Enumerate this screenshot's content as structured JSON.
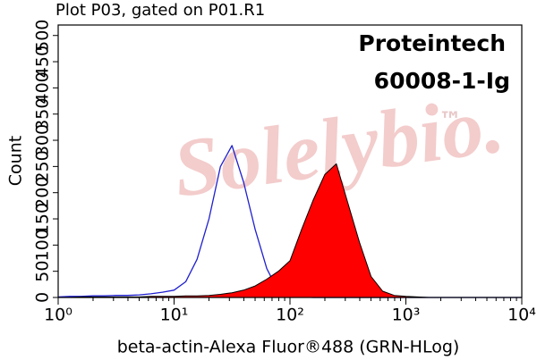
{
  "chart_data": {
    "type": "histogram-overlay",
    "title": "Plot P03, gated on P01.R1",
    "x_label": "beta-actin-Alexa Fluor®488 (GRN-HLog)",
    "y_label": "Count",
    "annotations": [
      "Proteintech",
      "60008-1-Ig"
    ],
    "watermark": "Solelybio.",
    "watermark_mark": "™",
    "x_log": true,
    "xlim": [
      1,
      10000
    ],
    "xticks": [
      {
        "value": 1,
        "label": "10⁰"
      },
      {
        "value": 10,
        "label": "10¹"
      },
      {
        "value": 100,
        "label": "10²"
      },
      {
        "value": 1000,
        "label": "10³"
      },
      {
        "value": 10000,
        "label": "10⁴"
      }
    ],
    "xminor_ticks": [
      2,
      3,
      4,
      5,
      6,
      7,
      8,
      9,
      20,
      30,
      40,
      50,
      60,
      70,
      80,
      90,
      200,
      300,
      400,
      500,
      600,
      700,
      800,
      900,
      2000,
      3000,
      4000,
      5000,
      6000,
      7000,
      8000,
      9000
    ],
    "ylim": [
      0,
      520
    ],
    "yticks": [
      0,
      50,
      100,
      150,
      200,
      250,
      300,
      350,
      400,
      450,
      500
    ],
    "x": [
      1,
      1.26,
      1.58,
      2,
      2.51,
      3.16,
      3.98,
      5.01,
      6.31,
      7.94,
      10,
      12.6,
      15.8,
      20,
      25.1,
      31.6,
      39.8,
      50.1,
      63.1,
      79.4,
      100,
      126,
      158,
      200,
      251,
      316,
      398,
      501,
      631,
      794,
      1000,
      1260,
      1580,
      2000,
      2510,
      3160,
      3980,
      5010,
      6310,
      7940,
      10000
    ],
    "series": [
      {
        "color": "#1f1fcf",
        "fill": false,
        "values": [
          1,
          2,
          2,
          3,
          3,
          4,
          4,
          5,
          7,
          10,
          14,
          30,
          73,
          150,
          250,
          290,
          220,
          130,
          55,
          12,
          3,
          1,
          0,
          0,
          0,
          0,
          0,
          0,
          0,
          0,
          0,
          0,
          0,
          0,
          0,
          0,
          0,
          0,
          0,
          0,
          0
        ]
      },
      {
        "color": "#ff0000",
        "fill": true,
        "values": [
          0,
          0,
          1,
          1,
          1,
          1,
          1,
          1,
          2,
          2,
          2,
          3,
          3,
          4,
          6,
          9,
          14,
          22,
          35,
          50,
          70,
          130,
          185,
          235,
          255,
          180,
          105,
          40,
          12,
          4,
          2,
          1,
          0,
          0,
          0,
          0,
          0,
          0,
          0,
          0,
          0
        ]
      }
    ]
  }
}
